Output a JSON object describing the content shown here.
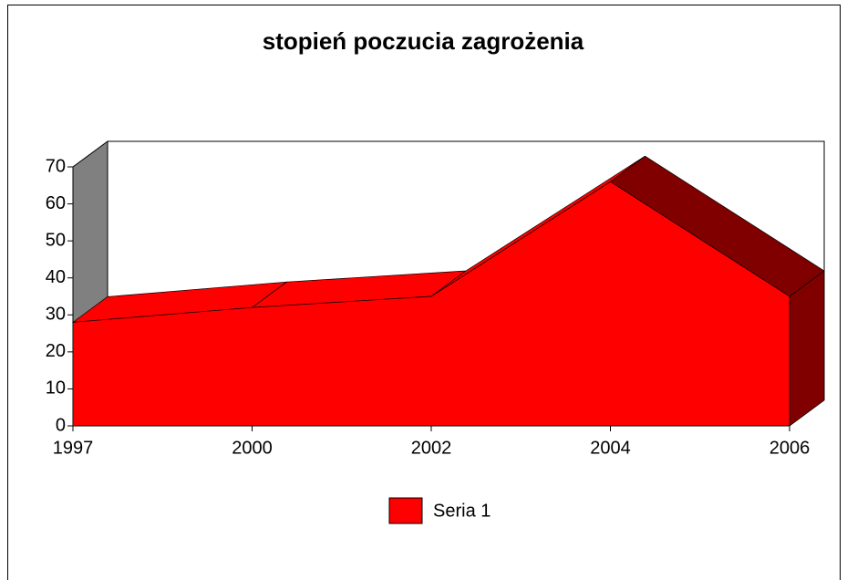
{
  "chart_data": {
    "type": "area3d",
    "title": "stopień poczucia zagrożenia",
    "categories": [
      "1997",
      "2000",
      "2002",
      "2004",
      "2006"
    ],
    "series": [
      {
        "name": "Seria 1",
        "color": "#ff0000",
        "values": [
          28,
          32,
          35,
          66,
          35
        ]
      }
    ],
    "ylim": [
      0,
      70
    ],
    "yticks": [
      0,
      10,
      20,
      30,
      40,
      50,
      60,
      70
    ],
    "legend": "bottom"
  }
}
